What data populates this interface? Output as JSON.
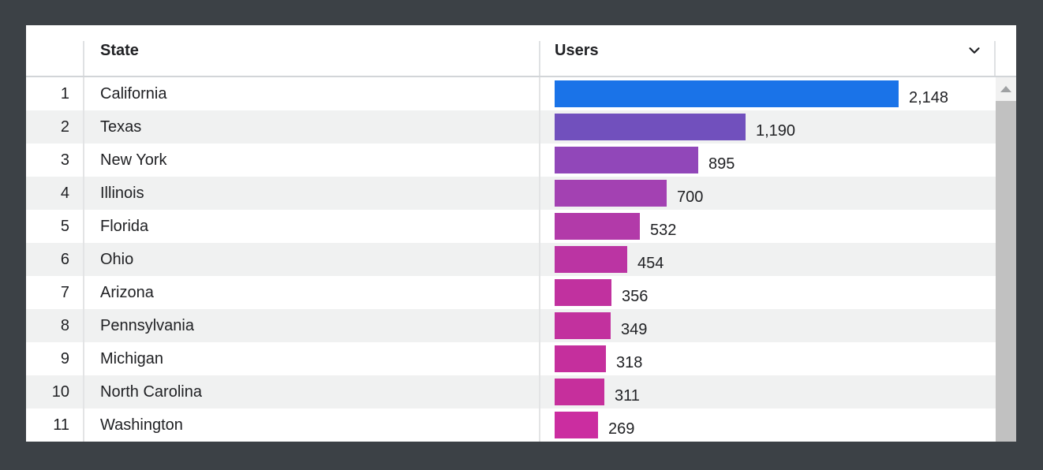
{
  "widget": {
    "type": "analytics-geo-users-table",
    "header": {
      "state": "State",
      "users": "Users"
    },
    "icons": {
      "sort_chevron": "chevron-down",
      "scroll_up": "triangle-up"
    },
    "colors": {
      "background": "#3c4146",
      "card": "#ffffff",
      "row_stripe": "#f0f1f1",
      "divider": "#e3e4e5",
      "header_underline": "#d2d5d8",
      "text": "#202124",
      "scroll_track": "#f1f1f1",
      "scroll_thumb": "#c1c1c1",
      "scroll_arrow": "#9fa1a3"
    }
  },
  "table": {
    "header": {
      "state": "State",
      "users": "Users"
    },
    "max_value": 2148,
    "rows": [
      {
        "rank": "1",
        "state": "California",
        "users": "2,148",
        "value": 2148,
        "color": "#1a73e8"
      },
      {
        "rank": "2",
        "state": "Texas",
        "users": "1,190",
        "value": 1190,
        "color": "#7150bd"
      },
      {
        "rank": "3",
        "state": "New York",
        "users": "895",
        "value": 895,
        "color": "#9147b9"
      },
      {
        "rank": "4",
        "state": "Illinois",
        "users": "700",
        "value": 700,
        "color": "#a341b2"
      },
      {
        "rank": "5",
        "state": "Florida",
        "users": "532",
        "value": 532,
        "color": "#b23aa9"
      },
      {
        "rank": "6",
        "state": "Ohio",
        "users": "454",
        "value": 454,
        "color": "#bb34a3"
      },
      {
        "rank": "7",
        "state": "Arizona",
        "users": "356",
        "value": 356,
        "color": "#c1319f"
      },
      {
        "rank": "8",
        "state": "Pennsylvania",
        "users": "349",
        "value": 349,
        "color": "#c2319e"
      },
      {
        "rank": "9",
        "state": "Michigan",
        "users": "318",
        "value": 318,
        "color": "#c52f9d"
      },
      {
        "rank": "10",
        "state": "North Carolina",
        "users": "311",
        "value": 311,
        "color": "#c62f9c"
      },
      {
        "rank": "11",
        "state": "Washington",
        "users": "269",
        "value": 269,
        "color": "#cb2da0"
      }
    ]
  },
  "chart_data": {
    "type": "bar",
    "orientation": "horizontal",
    "title": "",
    "xlabel": "Users",
    "ylabel": "State",
    "categories": [
      "California",
      "Texas",
      "New York",
      "Illinois",
      "Florida",
      "Ohio",
      "Arizona",
      "Pennsylvania",
      "Michigan",
      "North Carolina",
      "Washington"
    ],
    "values": [
      2148,
      1190,
      895,
      700,
      532,
      454,
      356,
      349,
      318,
      311,
      269
    ],
    "value_labels": [
      "2,148",
      "1,190",
      "895",
      "700",
      "532",
      "454",
      "356",
      "349",
      "318",
      "311",
      "269"
    ],
    "ranks": [
      1,
      2,
      3,
      4,
      5,
      6,
      7,
      8,
      9,
      10,
      11
    ],
    "xlim": [
      0,
      2148
    ],
    "grid": false,
    "legend": false,
    "bar_colors": [
      "#1a73e8",
      "#7150bd",
      "#9147b9",
      "#a341b2",
      "#b23aa9",
      "#bb34a3",
      "#c1319f",
      "#c2319e",
      "#c52f9d",
      "#c62f9c",
      "#cb2da0"
    ]
  }
}
